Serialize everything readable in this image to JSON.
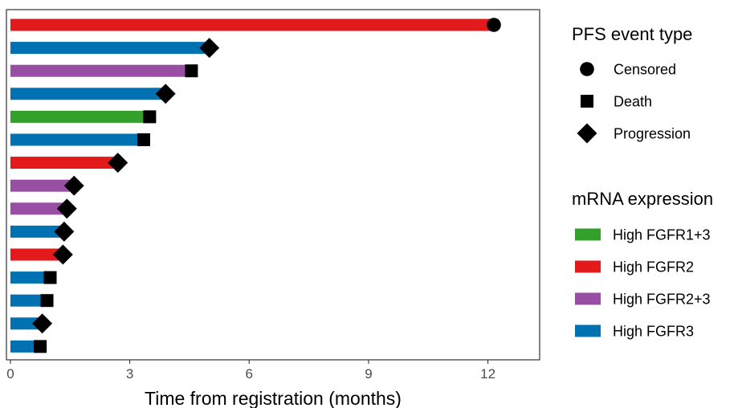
{
  "chart_data": {
    "type": "bar",
    "orientation": "horizontal",
    "title": "",
    "xlabel": "Time from registration (months)",
    "ylabel": "",
    "xlim": [
      -0.1,
      13.3
    ],
    "xticks": [
      0,
      3,
      6,
      9,
      12
    ],
    "xtick_labels": [
      "0",
      "3",
      "6",
      "9",
      "12"
    ],
    "grid": false,
    "legend_placement": "right",
    "colors": {
      "High FGFR1+3": "#33a02c",
      "High FGFR2": "#e31a1c",
      "High FGFR2+3": "#984ea3",
      "High FGFR3": "#0072b2"
    },
    "bars": [
      {
        "value": 12.15,
        "expression": "High FGFR2",
        "event": "Censored"
      },
      {
        "value": 5.0,
        "expression": "High FGFR3",
        "event": "Progression"
      },
      {
        "value": 4.55,
        "expression": "High FGFR2+3",
        "event": "Death"
      },
      {
        "value": 3.9,
        "expression": "High FGFR3",
        "event": "Progression"
      },
      {
        "value": 3.5,
        "expression": "High FGFR1+3",
        "event": "Death"
      },
      {
        "value": 3.35,
        "expression": "High FGFR3",
        "event": "Death"
      },
      {
        "value": 2.7,
        "expression": "High FGFR2",
        "event": "Progression"
      },
      {
        "value": 1.6,
        "expression": "High FGFR2+3",
        "event": "Progression"
      },
      {
        "value": 1.42,
        "expression": "High FGFR2+3",
        "event": "Progression"
      },
      {
        "value": 1.35,
        "expression": "High FGFR3",
        "event": "Progression"
      },
      {
        "value": 1.32,
        "expression": "High FGFR2",
        "event": "Progression"
      },
      {
        "value": 1.0,
        "expression": "High FGFR3",
        "event": "Death"
      },
      {
        "value": 0.92,
        "expression": "High FGFR3",
        "event": "Death"
      },
      {
        "value": 0.8,
        "expression": "High FGFR3",
        "event": "Progression"
      },
      {
        "value": 0.75,
        "expression": "High FGFR3",
        "event": "Death"
      }
    ],
    "legend": {
      "event_title": "PFS event type",
      "event_items": [
        {
          "label": "Censored",
          "shape": "circle"
        },
        {
          "label": "Death",
          "shape": "square"
        },
        {
          "label": "Progression",
          "shape": "diamond"
        }
      ],
      "expression_title": "mRNA expression",
      "expression_items": [
        {
          "label": "High FGFR1+3",
          "color": "#33a02c"
        },
        {
          "label": "High FGFR2",
          "color": "#e31a1c"
        },
        {
          "label": "High FGFR2+3",
          "color": "#984ea3"
        },
        {
          "label": "High FGFR3",
          "color": "#0072b2"
        }
      ]
    }
  }
}
